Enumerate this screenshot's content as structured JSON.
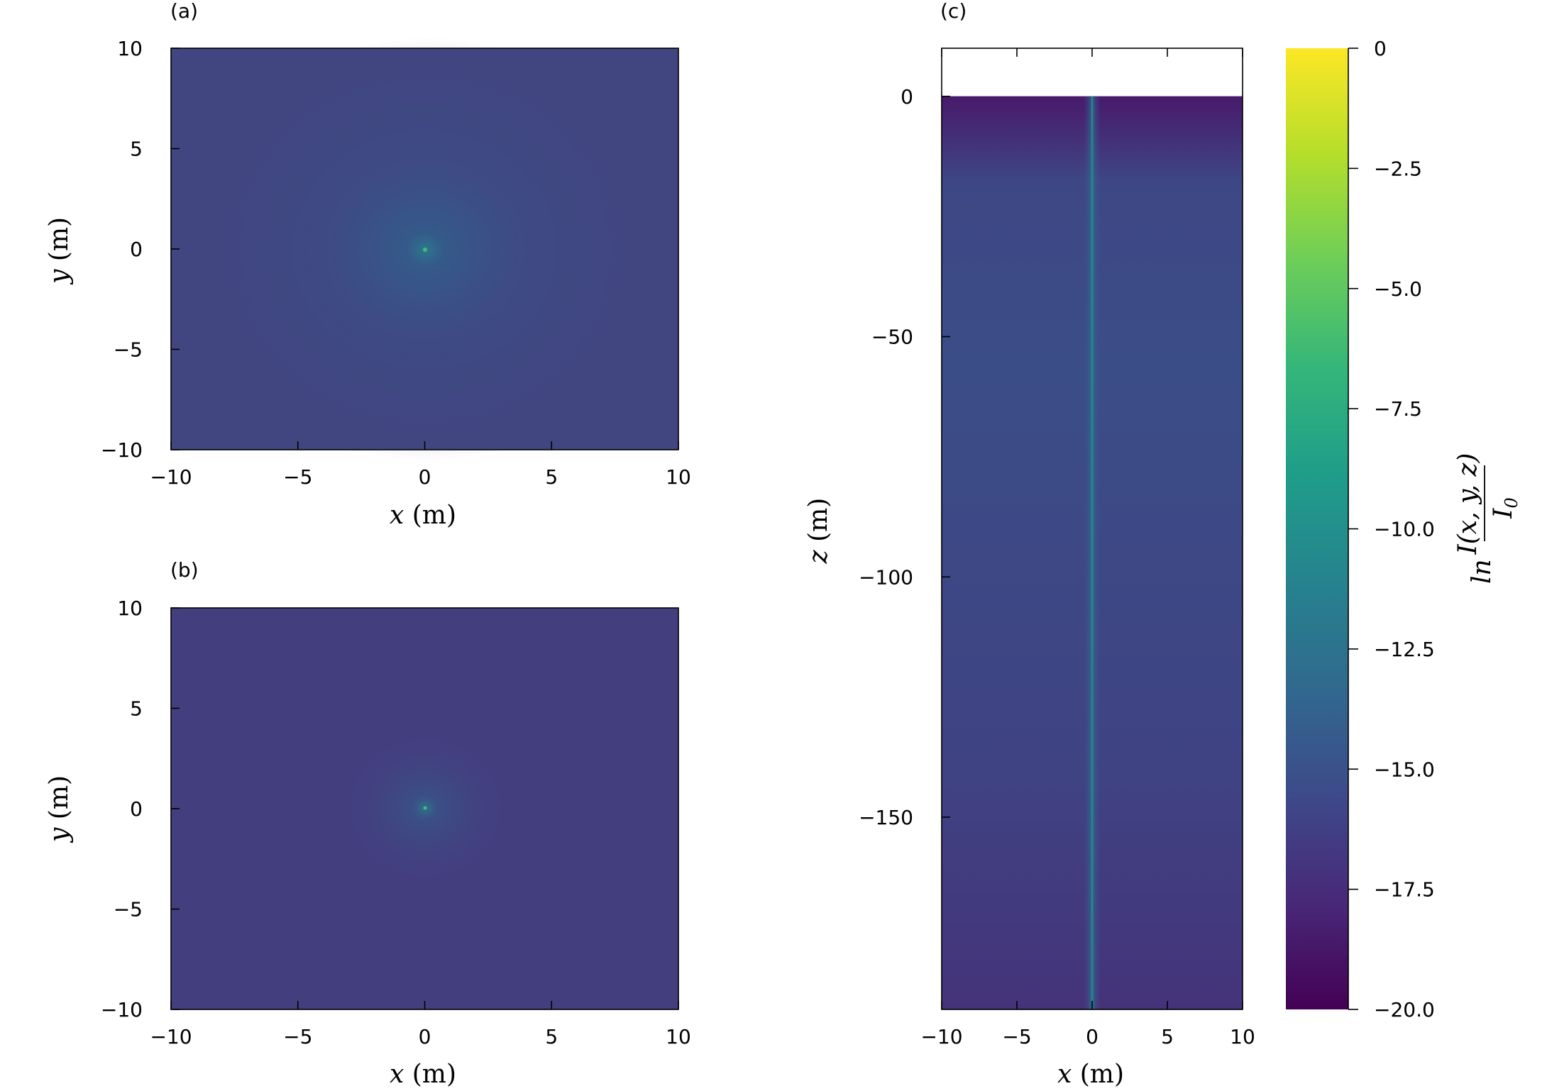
{
  "chart_data": [
    {
      "type": "heatmap",
      "panel": "(a)",
      "xlabel": "x (m)",
      "ylabel": "y (m)",
      "xlim": [
        -10,
        10
      ],
      "ylim": [
        -10,
        10
      ],
      "xticks": [
        "−10",
        "−5",
        "0",
        "5",
        "10"
      ],
      "yticks": [
        "10",
        "5",
        "0",
        "−5",
        "−10"
      ],
      "source": [
        0,
        0
      ],
      "peak_value": -10.5,
      "background_value": -16.0
    },
    {
      "type": "heatmap",
      "panel": "(b)",
      "xlabel": "x (m)",
      "ylabel": "y (m)",
      "xlim": [
        -10,
        10
      ],
      "ylim": [
        -10,
        10
      ],
      "xticks": [
        "−10",
        "−5",
        "0",
        "5",
        "10"
      ],
      "yticks": [
        "10",
        "5",
        "0",
        "−5",
        "−10"
      ],
      "source": [
        0,
        0
      ],
      "peak_value": -11.0,
      "background_value": -16.5
    },
    {
      "type": "heatmap",
      "panel": "(c)",
      "xlabel": "x (m)",
      "ylabel": "z (m)",
      "xlim": [
        -10,
        10
      ],
      "ylim": [
        -190,
        10
      ],
      "xticks": [
        "−10",
        "−5",
        "0",
        "5",
        "10"
      ],
      "yticks": [
        "0",
        "−50",
        "−100",
        "−150"
      ],
      "beam_x": 0,
      "beam_value": -10.5,
      "background_value": -16.0,
      "surface_z": 0
    }
  ],
  "colorbar": {
    "label": "ln I(x, y, z) / I0",
    "range": [
      -20,
      0
    ],
    "ticks": [
      "0",
      "−2.5",
      "−5.0",
      "−7.5",
      "−10.0",
      "−12.5",
      "−15.0",
      "−17.5",
      "−20.0"
    ],
    "colormap": "viridis",
    "colors": [
      "#440154",
      "#482878",
      "#3e4989",
      "#31688e",
      "#26828e",
      "#1f9e89",
      "#35b779",
      "#6ece58",
      "#b5de2b",
      "#fde725"
    ]
  },
  "labels": {
    "panel_a": "(a)",
    "panel_b": "(b)",
    "panel_c": "(c)",
    "x_var": "x",
    "y_var": "y",
    "z_var": "z",
    "unit": "(m)",
    "cb_numerator": "I(x, y, z)",
    "cb_denominator": "I",
    "cb_subscript": "0",
    "cb_ln": "ln"
  }
}
